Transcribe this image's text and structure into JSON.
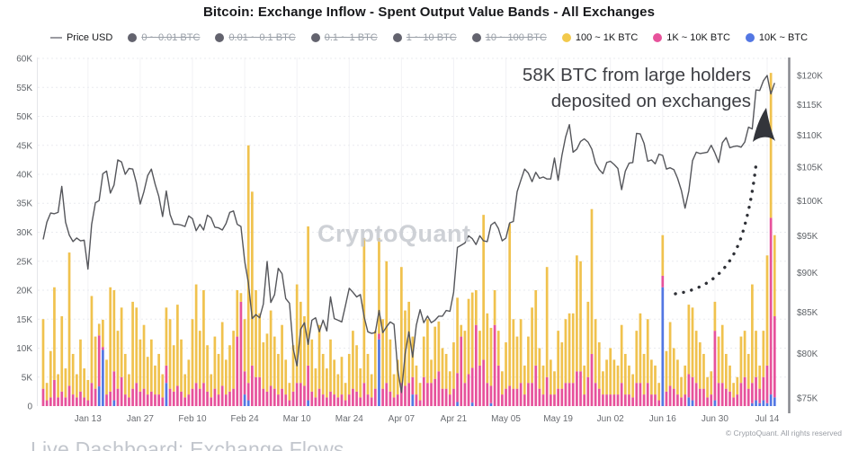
{
  "title": "Bitcoin: Exchange Inflow - Spent Output Value Bands - All Exchanges",
  "legend": {
    "items": [
      {
        "label": "Price USD",
        "marker": "line",
        "color": "#9b9ba1",
        "disabled": false
      },
      {
        "label": "0 ~ 0.01 BTC",
        "marker": "dot",
        "color": "#63636e",
        "disabled": true
      },
      {
        "label": "0.01 ~ 0.1 BTC",
        "marker": "dot",
        "color": "#63636e",
        "disabled": true
      },
      {
        "label": "0.1 ~ 1 BTC",
        "marker": "dot",
        "color": "#63636e",
        "disabled": true
      },
      {
        "label": "1 ~ 10 BTC",
        "marker": "dot",
        "color": "#63636e",
        "disabled": true
      },
      {
        "label": "10 ~ 100 BTC",
        "marker": "dot",
        "color": "#63636e",
        "disabled": true
      },
      {
        "label": "100 ~ 1K BTC",
        "marker": "dot",
        "color": "#F2C94C",
        "disabled": false
      },
      {
        "label": "1K ~ 10K BTC",
        "marker": "dot",
        "color": "#E7529B",
        "disabled": false
      },
      {
        "label": "10K ~ BTC",
        "marker": "dot",
        "color": "#5377E3",
        "disabled": false
      }
    ]
  },
  "annotation": {
    "line1": "58K BTC from large holders",
    "line2": "deposited on exchanges"
  },
  "watermark": "CryptoQuant",
  "footer": {
    "dashboard_link": "Live Dashboard: Exchange Flows",
    "copyright": "© CryptoQuant. All rights reserved"
  },
  "chart_data": {
    "type": "bar",
    "subtype": "stacked-bars-with-price-line",
    "x_unit": "day index, day 0 = Jan 01",
    "bar_unit": "K BTC (left axis)",
    "price_unit": "K USD (right axis, log scale)",
    "left_axis": {
      "min": 0,
      "max": 60,
      "tick_step": 5,
      "tick_labels": [
        "0",
        "5K",
        "10K",
        "15K",
        "20K",
        "25K",
        "30K",
        "35K",
        "40K",
        "45K",
        "50K",
        "55K",
        "60K"
      ]
    },
    "right_axis": {
      "min": 75,
      "max": 120,
      "tick_step": 5,
      "scale": "log",
      "tick_labels": [
        "$75K",
        "$80K",
        "$85K",
        "$90K",
        "$95K",
        "$100K",
        "$105K",
        "$110K",
        "$115K",
        "$120K"
      ]
    },
    "x_ticks": [
      {
        "label": "Jan 13",
        "day": 12
      },
      {
        "label": "Jan 27",
        "day": 26
      },
      {
        "label": "Feb 10",
        "day": 40
      },
      {
        "label": "Feb 24",
        "day": 54
      },
      {
        "label": "Mar 10",
        "day": 68
      },
      {
        "label": "Mar 24",
        "day": 82
      },
      {
        "label": "Apr 07",
        "day": 96
      },
      {
        "label": "Apr 21",
        "day": 110
      },
      {
        "label": "May 05",
        "day": 124
      },
      {
        "label": "May 19",
        "day": 138
      },
      {
        "label": "Jun 02",
        "day": 152
      },
      {
        "label": "Jun 16",
        "day": 166
      },
      {
        "label": "Jun 30",
        "day": 180
      },
      {
        "label": "Jul 14",
        "day": 194
      }
    ],
    "series": [
      {
        "name": "10K ~ BTC",
        "type": "bar",
        "color": "#5377E3",
        "values": [
          0,
          0,
          0,
          0,
          0,
          0,
          0,
          0,
          0,
          0,
          0,
          0,
          0,
          0,
          0,
          3.4,
          9.7,
          0,
          0,
          1,
          0,
          0,
          0,
          0,
          0,
          0,
          0,
          0,
          0,
          0,
          0,
          0,
          0,
          4,
          0,
          0,
          0,
          0,
          0,
          0,
          0,
          0,
          0,
          0,
          0,
          0,
          0,
          0,
          0,
          0,
          0,
          0,
          0,
          0,
          2,
          1,
          0,
          0,
          0,
          0,
          0,
          0,
          0,
          0,
          0,
          0,
          0,
          0,
          0,
          0,
          0,
          1,
          0,
          0,
          0,
          0,
          0,
          0,
          0,
          0,
          0,
          0,
          0,
          0,
          0,
          0,
          0,
          0,
          0,
          0,
          11.5,
          0,
          0,
          0,
          0,
          0,
          0,
          0,
          0,
          2,
          0,
          0,
          0,
          0,
          0,
          0,
          0,
          0,
          0,
          0,
          0,
          0.7,
          0,
          0,
          0,
          0.6,
          0,
          0,
          0,
          0,
          0.5,
          0,
          0,
          0,
          0,
          0,
          0,
          0,
          0,
          0,
          0,
          0,
          0,
          0,
          0,
          0,
          0,
          0,
          0,
          0,
          0,
          0,
          0,
          0,
          0,
          0,
          0,
          0,
          0,
          0,
          0,
          0,
          0,
          0,
          0,
          0,
          0,
          0,
          0,
          0,
          0,
          0,
          0,
          0,
          0,
          0,
          20.5,
          0,
          0,
          0,
          0,
          0,
          0,
          1.5,
          1,
          0,
          0,
          0,
          0,
          0,
          1,
          0,
          0,
          0,
          0,
          0,
          0,
          0,
          0,
          0,
          0.5,
          1,
          0.5,
          1,
          0.5,
          2,
          1.5
        ]
      },
      {
        "name": "1K ~ 10K BTC",
        "type": "bar",
        "color": "#E7529B",
        "values": [
          3,
          1,
          1.5,
          4.5,
          1.5,
          2.5,
          1.5,
          3.5,
          2,
          1.5,
          2.5,
          1.5,
          1,
          4,
          3,
          8.8,
          0.5,
          2,
          2.5,
          5,
          3,
          5,
          2,
          1.5,
          3,
          4,
          2.5,
          3,
          2,
          2.5,
          2,
          2,
          1.5,
          3,
          3,
          2.5,
          3.5,
          2.5,
          1.5,
          2,
          3,
          4,
          3,
          4,
          2.5,
          1.5,
          3,
          2,
          3.5,
          2,
          2.5,
          3,
          12,
          18,
          4,
          3,
          7,
          5,
          5,
          3,
          2.5,
          3.5,
          3,
          2,
          3,
          2,
          1,
          2.5,
          4,
          4,
          3.5,
          6,
          2.5,
          1.5,
          3,
          2,
          1.5,
          2.5,
          2,
          1.5,
          2,
          1,
          2,
          3,
          2.5,
          1.5,
          4,
          2,
          1.5,
          3,
          1,
          3,
          4,
          2.5,
          1.5,
          2,
          4,
          3.5,
          4,
          3,
          2,
          1,
          5,
          4,
          4,
          4.7,
          6,
          3,
          3,
          2,
          3,
          5,
          12,
          4,
          5.5,
          6,
          14,
          7,
          8,
          4,
          3,
          14,
          7,
          2,
          3,
          3.5,
          3,
          3,
          4,
          2,
          4,
          4,
          7,
          3,
          2,
          5,
          2,
          2,
          3,
          3,
          4,
          4,
          4,
          6,
          6,
          2,
          5,
          9,
          4,
          3,
          2,
          2,
          2,
          2,
          2,
          4,
          2,
          2,
          1.5,
          4,
          4,
          2,
          4,
          2,
          2,
          1,
          2,
          2.5,
          3.5,
          3,
          2,
          1.5,
          2,
          4,
          4,
          4,
          3,
          3,
          1.5,
          2,
          12,
          4,
          4,
          3,
          2.5,
          1.5,
          2,
          4,
          5,
          3,
          3.5,
          4,
          2.5,
          4,
          6.5,
          30.5,
          14
        ]
      },
      {
        "name": "100 ~ 1K BTC",
        "type": "bar",
        "color": "#F0C24E",
        "values": [
          12,
          3,
          8,
          16,
          4,
          13,
          5,
          23,
          7,
          4,
          9,
          5,
          3.5,
          15,
          9,
          2,
          4.7,
          6,
          18,
          14,
          10,
          12,
          7,
          4,
          15,
          13,
          9,
          11,
          6.5,
          9,
          5,
          7,
          4,
          10,
          12,
          8,
          14,
          9,
          4,
          6,
          12,
          17,
          10,
          16,
          8,
          4,
          9,
          7,
          11,
          6,
          8,
          10,
          8,
          1.5,
          9,
          41,
          30,
          15,
          11,
          8,
          10,
          13,
          9,
          7,
          11,
          6,
          3,
          8,
          17,
          14,
          12,
          24,
          9,
          5,
          11,
          7,
          5,
          9,
          6,
          4,
          6.5,
          3,
          7,
          10,
          8,
          5,
          25,
          7,
          4,
          10,
          16.5,
          12,
          21,
          9,
          4,
          6,
          20,
          13,
          14,
          7,
          5,
          3,
          7,
          11,
          4,
          9,
          8.6,
          7,
          6,
          4,
          8,
          13,
          2,
          9,
          13,
          13,
          6,
          6,
          25,
          12,
          10,
          6,
          6,
          4,
          8,
          28,
          12,
          9,
          11,
          5,
          8,
          13,
          13,
          7,
          5,
          19,
          6,
          4,
          10,
          8,
          11,
          12,
          12,
          20,
          19,
          5,
          13,
          25,
          11,
          8,
          4,
          6,
          8,
          6,
          5,
          10,
          7,
          5,
          4,
          9,
          12,
          7,
          11,
          6,
          5,
          3,
          7,
          7,
          11,
          7,
          6,
          3.5,
          5,
          12,
          12,
          9,
          8,
          6,
          3.5,
          4,
          5,
          8,
          10,
          6,
          4.5,
          2.5,
          3,
          8,
          8,
          6,
          17,
          8,
          4,
          8,
          19,
          25,
          14
        ]
      },
      {
        "name": "Price USD",
        "type": "line",
        "color": "#55565b",
        "values": [
          94.5,
          96.9,
          98.2,
          98.1,
          98.3,
          102.1,
          96.9,
          95.1,
          94.2,
          94.7,
          94.3,
          94.4,
          90.5,
          96.6,
          99.7,
          100.0,
          104.0,
          104.4,
          101.1,
          102.3,
          106.1,
          105.8,
          103.9,
          104.8,
          104.7,
          102.6,
          99.5,
          101.3,
          103.7,
          104.7,
          102.4,
          100.6,
          97.7,
          101.4,
          98.0,
          96.6,
          96.6,
          96.5,
          96.3,
          97.8,
          97.4,
          95.7,
          96.6,
          95.8,
          97.9,
          97.5,
          96.2,
          96.1,
          95.8,
          96.7,
          98.3,
          98.5,
          96.6,
          96.3,
          91.5,
          88.7,
          84.2,
          84.7,
          84.3,
          86.0,
          91.5,
          86.2,
          87.2,
          90.6,
          89.9,
          86.7,
          86.1,
          80.6,
          78.6,
          82.9,
          83.7,
          81.1,
          84.0,
          84.3,
          82.6,
          84.0,
          82.7,
          86.9,
          84.2,
          84.0,
          83.8,
          85.8,
          88.0,
          87.5,
          86.9,
          87.2,
          84.4,
          82.6,
          82.4,
          82.5,
          85.2,
          82.5,
          83.2,
          83.8,
          83.5,
          78.2,
          75.6,
          80.0,
          82.6,
          79.6,
          83.4,
          85.3,
          83.7,
          84.5,
          83.7,
          84.0,
          84.5,
          84.5,
          85.2,
          85.1,
          87.5,
          93.4,
          93.7,
          94.0,
          95.0,
          94.6,
          93.8,
          95.0,
          94.3,
          94.2,
          96.5,
          96.9,
          96.0,
          94.3,
          94.7,
          96.8,
          97.0,
          101.3,
          103.0,
          104.7,
          104.1,
          102.8,
          104.2,
          103.3,
          103.5,
          103.2,
          103.2,
          106.4,
          103.0,
          106.8,
          109.7,
          111.7,
          107.3,
          107.8,
          109.0,
          109.4,
          108.9,
          107.8,
          105.6,
          104.6,
          104.0,
          105.7,
          105.9,
          105.4,
          104.8,
          101.6,
          104.4,
          105.6,
          105.7,
          110.3,
          110.2,
          108.7,
          105.9,
          106.1,
          105.5,
          107.0,
          106.8,
          104.7,
          104.9,
          104.6,
          103.3,
          101.5,
          98.9,
          101.4,
          106.0,
          107.3,
          107.1,
          107.2,
          107.3,
          108.4,
          107.2,
          105.7,
          108.8,
          109.6,
          108.0,
          108.2,
          108.3,
          108.1,
          108.9,
          111.3,
          111.0,
          117.5,
          117.4,
          119.1,
          120.0,
          116.8,
          118.7
        ]
      }
    ]
  }
}
